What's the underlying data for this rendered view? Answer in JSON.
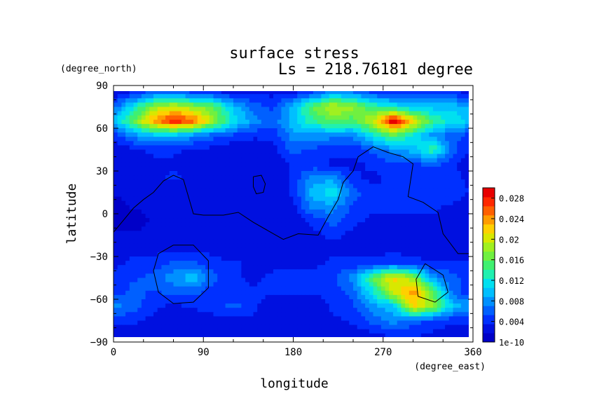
{
  "chart_data": {
    "type": "heatmap",
    "title": "surface stress",
    "subtitle": "Ls = 218.76181 degree",
    "xlabel": "longitude",
    "ylabel": "latitude",
    "xunits": "(degree_east)",
    "yunits": "(degree_north)",
    "xlim": [
      0,
      360
    ],
    "ylim": [
      -90,
      90
    ],
    "xticks": [
      "0",
      "90",
      "180",
      "270",
      "360"
    ],
    "yticks": [
      "90",
      "60",
      "30",
      "0",
      "−30",
      "−60",
      "−90"
    ],
    "colorbar": {
      "labels": [
        "0.028",
        "0.024",
        "0.02",
        "0.016",
        "0.012",
        "0.008",
        "0.004",
        "1e-10"
      ],
      "min": 0,
      "max": 0.03,
      "colors": [
        "#0000c8",
        "#0010e0",
        "#0030ff",
        "#0060ff",
        "#0090ff",
        "#00bfff",
        "#00e0f0",
        "#20f0b0",
        "#40f070",
        "#70f040",
        "#a0f020",
        "#d8e800",
        "#ffd000",
        "#ff9c00",
        "#ff6000",
        "#ff2800",
        "#e80000"
      ]
    },
    "grid": false,
    "legend": "colorbar right",
    "field": {
      "lon": [
        0,
        20,
        40,
        60,
        80,
        100,
        120,
        140,
        160,
        180,
        200,
        220,
        240,
        260,
        280,
        300,
        320,
        340,
        360
      ],
      "lat": [
        85,
        75,
        65,
        55,
        45,
        35,
        25,
        15,
        5,
        -5,
        -15,
        -25,
        -35,
        -45,
        -55,
        -65,
        -75,
        -85
      ],
      "values": [
        [
          0.002,
          0.004,
          0.006,
          0.006,
          0.005,
          0.004,
          0.003,
          0.003,
          0.003,
          0.003,
          0.005,
          0.008,
          0.007,
          0.005,
          0.004,
          0.004,
          0.004,
          0.004,
          0.003
        ],
        [
          0.006,
          0.012,
          0.018,
          0.02,
          0.018,
          0.016,
          0.01,
          0.006,
          0.005,
          0.01,
          0.016,
          0.02,
          0.018,
          0.014,
          0.012,
          0.01,
          0.01,
          0.01,
          0.008
        ],
        [
          0.01,
          0.016,
          0.024,
          0.028,
          0.026,
          0.018,
          0.012,
          0.008,
          0.006,
          0.01,
          0.014,
          0.016,
          0.015,
          0.02,
          0.03,
          0.022,
          0.014,
          0.012,
          0.01
        ],
        [
          0.004,
          0.008,
          0.01,
          0.01,
          0.008,
          0.006,
          0.005,
          0.004,
          0.004,
          0.008,
          0.008,
          0.008,
          0.008,
          0.012,
          0.016,
          0.012,
          0.008,
          0.006,
          0.004
        ],
        [
          0.002,
          0.003,
          0.004,
          0.004,
          0.003,
          0.003,
          0.002,
          0.002,
          0.003,
          0.006,
          0.005,
          0.004,
          0.004,
          0.006,
          0.008,
          0.01,
          0.014,
          0.006,
          0.003
        ],
        [
          0.002,
          0.002,
          0.003,
          0.003,
          0.003,
          0.002,
          0.002,
          0.002,
          0.002,
          0.004,
          0.004,
          0.003,
          0.003,
          0.004,
          0.005,
          0.005,
          0.006,
          0.004,
          0.002
        ],
        [
          0.002,
          0.002,
          0.003,
          0.004,
          0.003,
          0.002,
          0.002,
          0.002,
          0.002,
          0.004,
          0.008,
          0.008,
          0.004,
          0.003,
          0.004,
          0.004,
          0.004,
          0.004,
          0.003
        ],
        [
          0.002,
          0.002,
          0.002,
          0.002,
          0.002,
          0.002,
          0.002,
          0.002,
          0.002,
          0.004,
          0.01,
          0.012,
          0.006,
          0.004,
          0.004,
          0.004,
          0.004,
          0.005,
          0.003
        ],
        [
          0.001,
          0.002,
          0.002,
          0.002,
          0.002,
          0.002,
          0.002,
          0.002,
          0.002,
          0.003,
          0.008,
          0.008,
          0.005,
          0.004,
          0.004,
          0.004,
          0.004,
          0.003,
          0.002
        ],
        [
          0.001,
          0.001,
          0.002,
          0.002,
          0.002,
          0.002,
          0.002,
          0.002,
          0.002,
          0.002,
          0.004,
          0.006,
          0.004,
          0.003,
          0.003,
          0.003,
          0.003,
          0.002,
          0.002
        ],
        [
          0.002,
          0.002,
          0.002,
          0.002,
          0.002,
          0.002,
          0.002,
          0.002,
          0.002,
          0.002,
          0.003,
          0.004,
          0.003,
          0.003,
          0.003,
          0.003,
          0.002,
          0.002,
          0.002
        ],
        [
          0.002,
          0.003,
          0.003,
          0.003,
          0.003,
          0.003,
          0.002,
          0.002,
          0.002,
          0.002,
          0.002,
          0.003,
          0.003,
          0.003,
          0.003,
          0.003,
          0.002,
          0.002,
          0.002
        ],
        [
          0.003,
          0.004,
          0.004,
          0.006,
          0.006,
          0.004,
          0.004,
          0.003,
          0.003,
          0.003,
          0.003,
          0.004,
          0.004,
          0.004,
          0.005,
          0.004,
          0.004,
          0.004,
          0.004
        ],
        [
          0.004,
          0.005,
          0.006,
          0.008,
          0.01,
          0.006,
          0.004,
          0.003,
          0.004,
          0.004,
          0.004,
          0.005,
          0.008,
          0.016,
          0.022,
          0.018,
          0.008,
          0.006,
          0.004
        ],
        [
          0.004,
          0.006,
          0.005,
          0.006,
          0.006,
          0.004,
          0.004,
          0.004,
          0.004,
          0.004,
          0.004,
          0.004,
          0.006,
          0.012,
          0.02,
          0.024,
          0.016,
          0.006,
          0.004
        ],
        [
          0.008,
          0.006,
          0.004,
          0.003,
          0.004,
          0.004,
          0.006,
          0.004,
          0.002,
          0.002,
          0.002,
          0.004,
          0.005,
          0.008,
          0.01,
          0.022,
          0.018,
          0.01,
          0.008
        ],
        [
          0.004,
          0.004,
          0.003,
          0.002,
          0.002,
          0.003,
          0.003,
          0.003,
          0.002,
          0.002,
          0.002,
          0.003,
          0.004,
          0.006,
          0.008,
          0.006,
          0.005,
          0.004,
          0.004
        ],
        [
          0.002,
          0.002,
          0.002,
          0.002,
          0.002,
          0.002,
          0.002,
          0.002,
          0.002,
          0.002,
          0.002,
          0.002,
          0.002,
          0.003,
          0.004,
          0.004,
          0.003,
          0.002,
          0.002
        ]
      ]
    },
    "contours": [
      {
        "points": [
          [
            0,
            -13
          ],
          [
            20,
            4
          ],
          [
            30,
            10
          ],
          [
            40,
            15
          ],
          [
            50,
            23
          ],
          [
            60,
            27
          ],
          [
            70,
            24
          ],
          [
            75,
            12
          ],
          [
            80,
            0
          ],
          [
            90,
            -1
          ],
          [
            110,
            -1
          ],
          [
            125,
            1
          ],
          [
            140,
            -6
          ],
          [
            155,
            -12
          ],
          [
            170,
            -18
          ],
          [
            185,
            -14
          ],
          [
            205,
            -15
          ],
          [
            215,
            -2
          ],
          [
            225,
            10
          ],
          [
            230,
            22
          ],
          [
            240,
            30
          ],
          [
            245,
            40
          ],
          [
            260,
            47
          ],
          [
            275,
            43
          ],
          [
            290,
            40
          ],
          [
            300,
            35
          ],
          [
            295,
            12
          ],
          [
            310,
            8
          ],
          [
            325,
            1
          ],
          [
            330,
            -14
          ],
          [
            345,
            -28
          ],
          [
            360,
            -28
          ]
        ]
      },
      {
        "points": [
          [
            140,
            26
          ],
          [
            148,
            27
          ],
          [
            152,
            21
          ],
          [
            150,
            15
          ],
          [
            143,
            14
          ],
          [
            140,
            19
          ],
          [
            140,
            26
          ]
        ]
      },
      {
        "points": [
          [
            60,
            -22
          ],
          [
            80,
            -22
          ],
          [
            95,
            -33
          ],
          [
            95,
            -52
          ],
          [
            80,
            -62
          ],
          [
            60,
            -63
          ],
          [
            45,
            -55
          ],
          [
            40,
            -40
          ],
          [
            45,
            -28
          ],
          [
            60,
            -22
          ]
        ]
      },
      {
        "points": [
          [
            312,
            -35
          ],
          [
            330,
            -43
          ],
          [
            335,
            -55
          ],
          [
            322,
            -62
          ],
          [
            305,
            -58
          ],
          [
            303,
            -46
          ],
          [
            312,
            -35
          ]
        ]
      }
    ]
  }
}
